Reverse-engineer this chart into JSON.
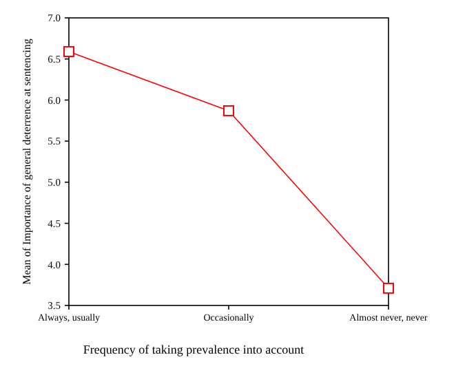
{
  "chart_data": {
    "type": "line",
    "xlabel": "Frequency of taking prevalence into account",
    "ylabel": "Mean of Importance of general deterrence at sentencing",
    "categories": [
      "Always, usually",
      "Occasionally",
      "Almost never, never"
    ],
    "series": [
      {
        "color": "#ff0000",
        "values": [
          6.59,
          5.87,
          3.71
        ]
      }
    ],
    "ylim": [
      3.5,
      7.0
    ],
    "yticks": [
      {
        "value": 3.5,
        "label": "3.5"
      },
      {
        "value": 4,
        "label": "4.0"
      },
      {
        "value": 4.5,
        "label": "4.5"
      },
      {
        "value": 5,
        "label": "5.0"
      },
      {
        "value": 5.5,
        "label": "5.5"
      },
      {
        "value": 6,
        "label": "6.0"
      },
      {
        "value": 6.5,
        "label": "6.5"
      },
      {
        "value": 7,
        "label": "7.0"
      }
    ],
    "marker": "square",
    "line_style": "solid"
  }
}
